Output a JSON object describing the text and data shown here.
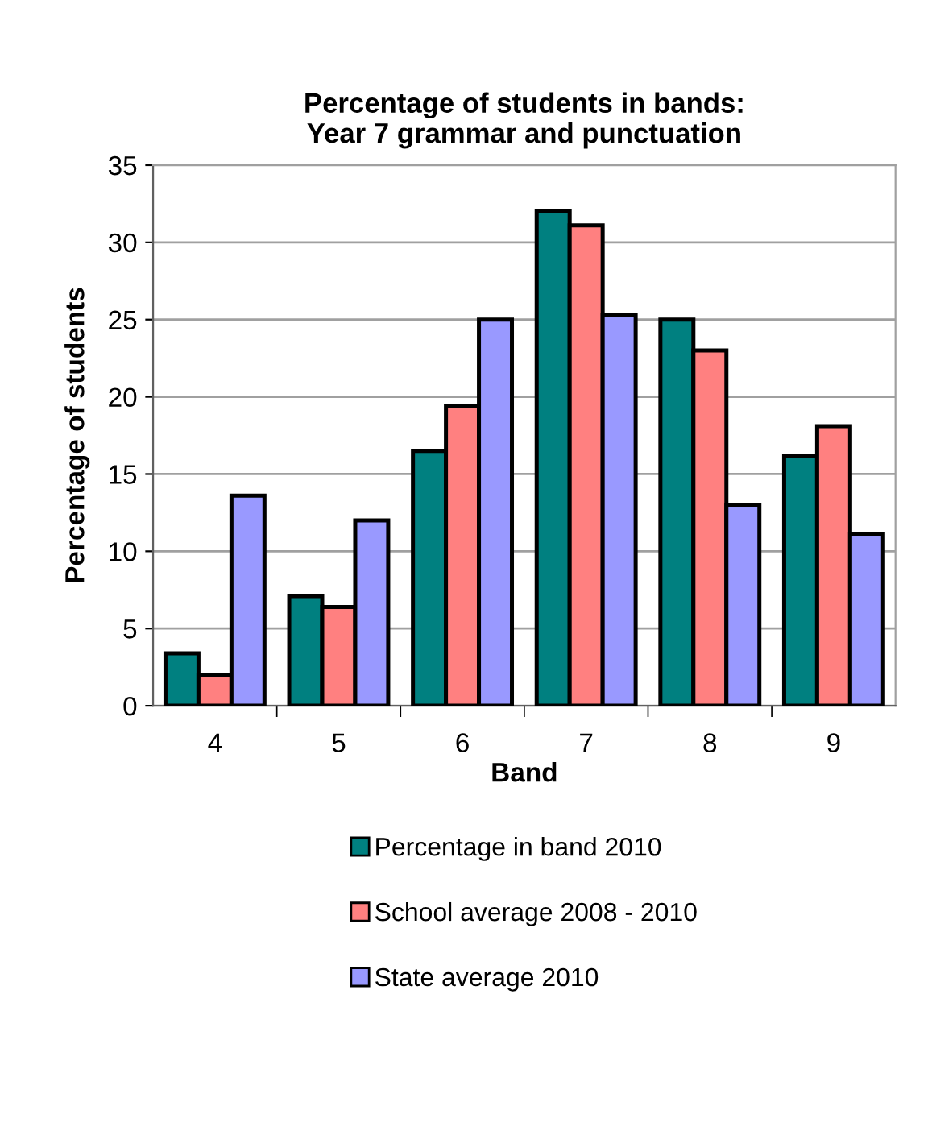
{
  "chart_data": {
    "type": "bar",
    "title": "Percentage of students in bands:\nYear 7 grammar and punctuation",
    "xlabel": "Band",
    "ylabel": "Percentage of students",
    "categories": [
      "4",
      "5",
      "6",
      "7",
      "8",
      "9"
    ],
    "series": [
      {
        "name": "Percentage in band 2010",
        "color": "#008080",
        "values": [
          3.4,
          7.1,
          16.5,
          32.0,
          25.0,
          16.2
        ]
      },
      {
        "name": "School average 2008 - 2010",
        "color": "#ff8080",
        "values": [
          2.0,
          6.4,
          19.4,
          31.1,
          23.0,
          18.1
        ]
      },
      {
        "name": "State average 2010",
        "color": "#9999ff",
        "values": [
          13.6,
          12.0,
          25.0,
          25.3,
          13.0,
          11.1
        ]
      }
    ],
    "ylim": [
      0,
      35
    ],
    "yticks": [
      0,
      5,
      10,
      15,
      20,
      25,
      30,
      35
    ],
    "grid": "y",
    "legend": "bottom"
  }
}
